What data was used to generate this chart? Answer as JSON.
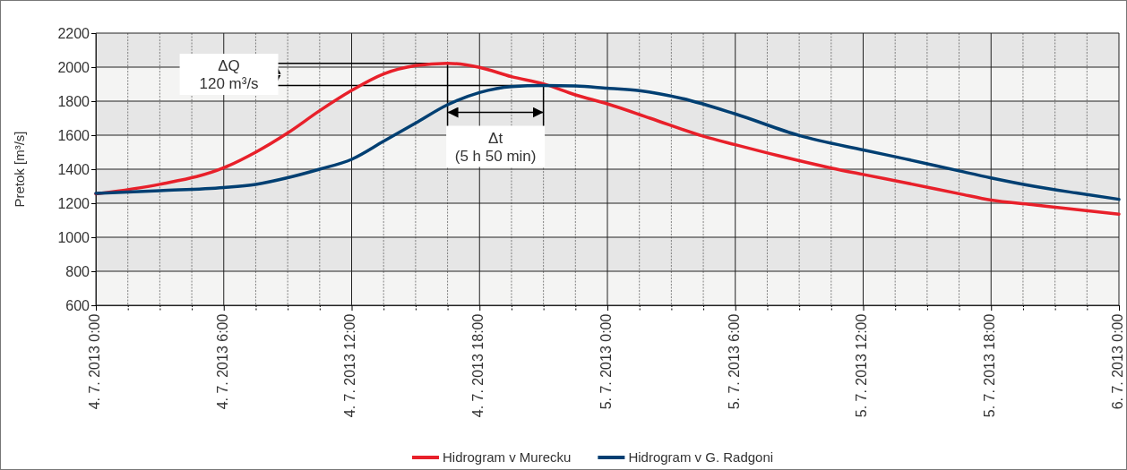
{
  "chart_data": {
    "type": "line",
    "ylabel": "Pretok [m³/s]",
    "xlim": [
      "2013-07-04T00:00",
      "2013-07-06T00:00"
    ],
    "ylim": [
      600,
      2200
    ],
    "yticks": [
      600,
      800,
      1000,
      1200,
      1400,
      1600,
      1800,
      2000,
      2200
    ],
    "xticks": [
      {
        "value": "2013-07-04T00:00",
        "label": "4. 7. 2013 0:00"
      },
      {
        "value": "2013-07-04T01:30",
        "label": null
      },
      {
        "value": "2013-07-04T03:00",
        "label": null
      },
      {
        "value": "2013-07-04T04:30",
        "label": null
      },
      {
        "value": "2013-07-04T06:00",
        "label": "4. 7. 2013 6:00"
      },
      {
        "value": "2013-07-04T07:30",
        "label": null
      },
      {
        "value": "2013-07-04T09:00",
        "label": null
      },
      {
        "value": "2013-07-04T10:30",
        "label": null
      },
      {
        "value": "2013-07-04T12:00",
        "label": "4. 7. 2013 12:00"
      },
      {
        "value": "2013-07-04T13:30",
        "label": null
      },
      {
        "value": "2013-07-04T15:00",
        "label": null
      },
      {
        "value": "2013-07-04T16:30",
        "label": null
      },
      {
        "value": "2013-07-04T18:00",
        "label": "4. 7. 2013 18:00"
      },
      {
        "value": "2013-07-04T19:30",
        "label": null
      },
      {
        "value": "2013-07-04T21:00",
        "label": null
      },
      {
        "value": "2013-07-04T22:30",
        "label": null
      },
      {
        "value": "2013-07-05T00:00",
        "label": "5. 7. 2013 0:00"
      },
      {
        "value": "2013-07-05T01:30",
        "label": null
      },
      {
        "value": "2013-07-05T03:00",
        "label": null
      },
      {
        "value": "2013-07-05T04:30",
        "label": null
      },
      {
        "value": "2013-07-05T06:00",
        "label": "5. 7. 2013 6:00"
      },
      {
        "value": "2013-07-05T07:30",
        "label": null
      },
      {
        "value": "2013-07-05T09:00",
        "label": null
      },
      {
        "value": "2013-07-05T10:30",
        "label": null
      },
      {
        "value": "2013-07-05T12:00",
        "label": "5. 7. 2013 12:00"
      },
      {
        "value": "2013-07-05T13:30",
        "label": null
      },
      {
        "value": "2013-07-05T15:00",
        "label": null
      },
      {
        "value": "2013-07-05T16:30",
        "label": null
      },
      {
        "value": "2013-07-05T18:00",
        "label": "5. 7. 2013 18:00"
      },
      {
        "value": "2013-07-05T19:30",
        "label": null
      },
      {
        "value": "2013-07-05T21:00",
        "label": null
      },
      {
        "value": "2013-07-05T22:30",
        "label": null
      },
      {
        "value": "2013-07-06T00:00",
        "label": "6. 7. 2013 0:00"
      }
    ],
    "grid": true,
    "legend": "bottom",
    "line_style": "solid",
    "marker": "none",
    "series": [
      {
        "name": "Hidrogram v Murecku",
        "color": "#e8202a",
        "x": [
          "2013-07-04T00:00",
          "2013-07-04T03:00",
          "2013-07-04T06:00",
          "2013-07-04T07:30",
          "2013-07-04T09:00",
          "2013-07-04T10:30",
          "2013-07-04T12:00",
          "2013-07-04T13:30",
          "2013-07-04T15:00",
          "2013-07-04T16:30",
          "2013-07-04T18:00",
          "2013-07-04T19:30",
          "2013-07-04T21:00",
          "2013-07-04T22:30",
          "2013-07-05T00:00",
          "2013-07-05T02:00",
          "2013-07-05T04:30",
          "2013-07-05T06:00",
          "2013-07-05T08:00",
          "2013-07-05T10:30",
          "2013-07-05T12:00",
          "2013-07-05T14:00",
          "2013-07-05T16:30",
          "2013-07-05T18:00",
          "2013-07-05T19:54",
          "2013-07-05T21:30",
          "2013-07-06T00:00"
        ],
        "values": [
          1255,
          1311,
          1408,
          1500,
          1613,
          1744,
          1863,
          1960,
          2009,
          2023,
          1999,
          1944,
          1902,
          1837,
          1784,
          1700,
          1594,
          1544,
          1480,
          1407,
          1369,
          1320,
          1256,
          1218,
          1192,
          1170,
          1136
        ]
      },
      {
        "name": "Hidrogram v G. Radgoni",
        "color": "#003f72",
        "x": [
          "2013-07-04T00:00",
          "2013-07-04T03:00",
          "2013-07-04T06:00",
          "2013-07-04T07:30",
          "2013-07-04T09:00",
          "2013-07-04T10:30",
          "2013-07-04T12:00",
          "2013-07-04T13:30",
          "2013-07-04T15:00",
          "2013-07-04T16:30",
          "2013-07-04T18:00",
          "2013-07-04T19:30",
          "2013-07-04T21:00",
          "2013-07-04T22:30",
          "2013-07-05T00:00",
          "2013-07-05T01:30",
          "2013-07-05T03:30",
          "2013-07-05T06:00",
          "2013-07-05T09:00",
          "2013-07-05T12:00",
          "2013-07-05T14:00",
          "2013-07-05T16:30",
          "2013-07-05T18:00",
          "2013-07-05T20:00",
          "2013-07-05T22:00",
          "2013-07-06T00:00"
        ],
        "values": [
          1258,
          1274,
          1292,
          1311,
          1350,
          1400,
          1458,
          1564,
          1671,
          1779,
          1851,
          1886,
          1892,
          1889,
          1876,
          1862,
          1816,
          1725,
          1598,
          1513,
          1460,
          1390,
          1349,
          1300,
          1260,
          1223
        ]
      }
    ],
    "annotations": [
      {
        "text": "ΔQ\n120 m³/s",
        "x": "2013-07-04T16:30",
        "y": 2023
      },
      "Δt\n(5 h 50 min)"
    ]
  }
}
